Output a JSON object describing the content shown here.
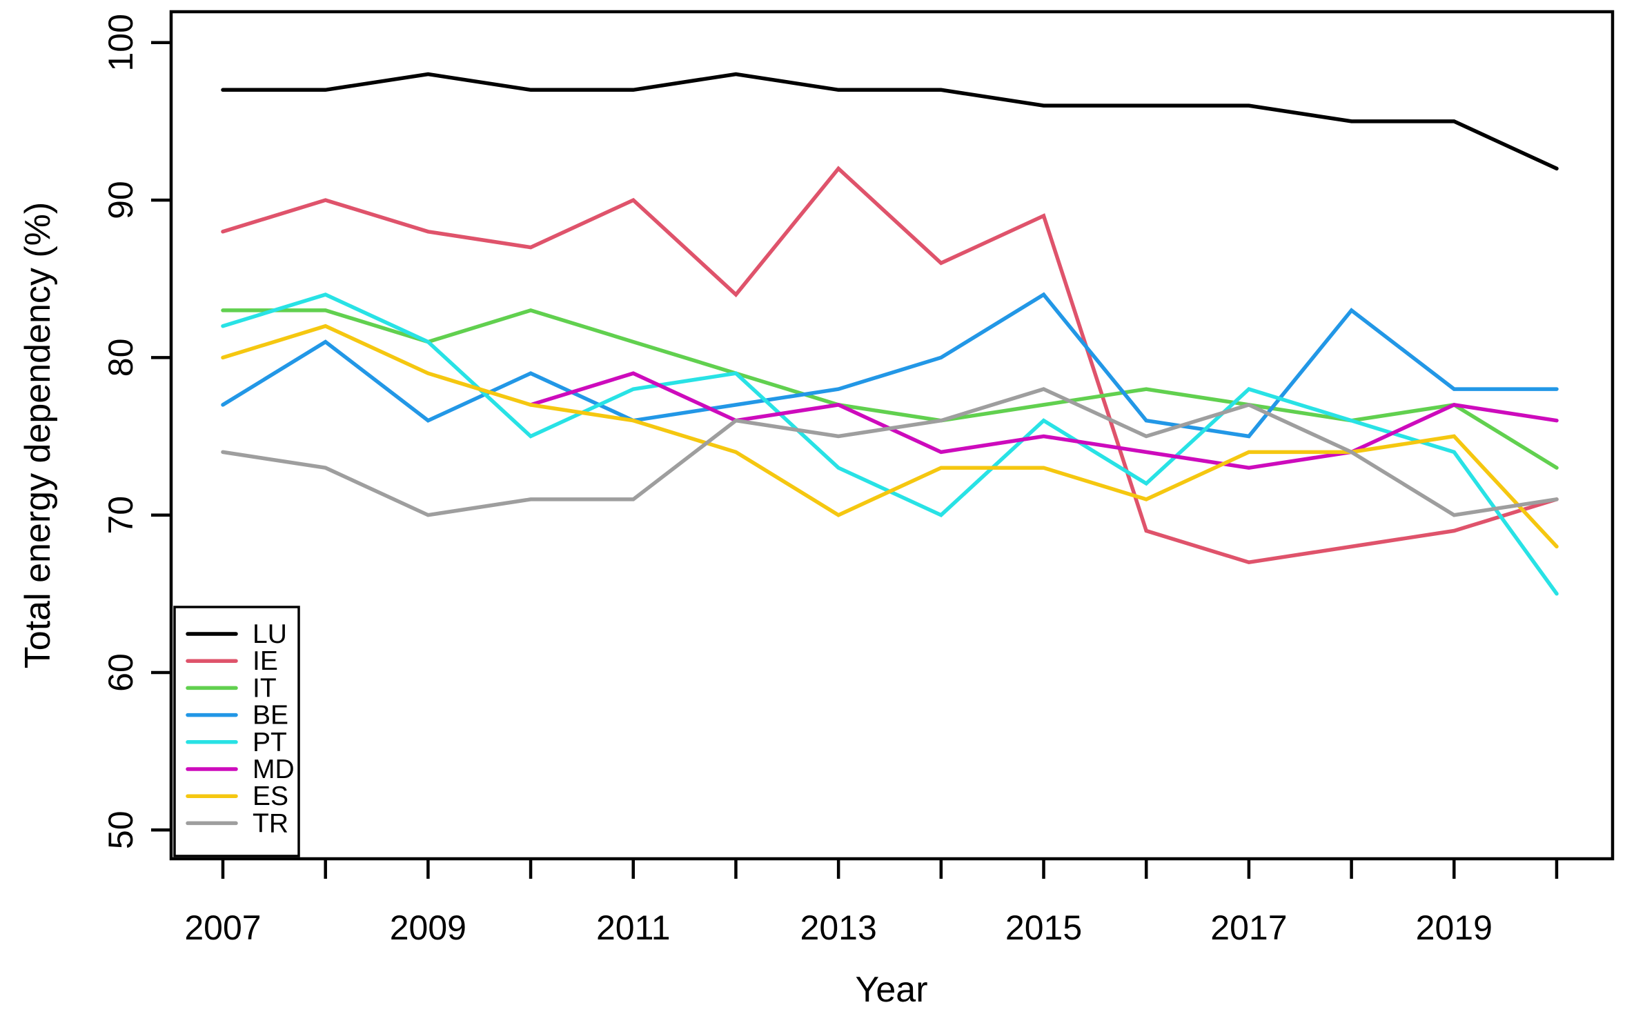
{
  "chart_data": {
    "type": "line",
    "title": "",
    "xlabel": "Year",
    "ylabel": "Total energy dependency (%)",
    "x": [
      2007,
      2008,
      2009,
      2010,
      2011,
      2012,
      2013,
      2014,
      2015,
      2016,
      2017,
      2018,
      2019,
      2020
    ],
    "x_labeled_years": [
      2007,
      2009,
      2011,
      2013,
      2015,
      2017,
      2019
    ],
    "y_ticks": [
      50,
      60,
      70,
      80,
      90,
      100
    ],
    "ylim": [
      48,
      102
    ],
    "xlim": [
      2006.5,
      2020.6
    ],
    "grid": false,
    "legend_position": "bottom-left",
    "axis_color": "#000000",
    "background_color": "#ffffff",
    "series": [
      {
        "name": "LU",
        "color": "#000000",
        "values": [
          97,
          97,
          98,
          97,
          97,
          98,
          97,
          97,
          96,
          96,
          96,
          95,
          95,
          92
        ]
      },
      {
        "name": "IE",
        "color": "#DF536B",
        "values": [
          88,
          90,
          88,
          87,
          90,
          84,
          92,
          86,
          89,
          69,
          67,
          68,
          69,
          71
        ]
      },
      {
        "name": "IT",
        "color": "#61D04F",
        "values": [
          83,
          83,
          81,
          83,
          81,
          79,
          77,
          76,
          77,
          78,
          77,
          76,
          77,
          73
        ]
      },
      {
        "name": "BE",
        "color": "#2297E6",
        "values": [
          77,
          81,
          76,
          79,
          76,
          77,
          78,
          80,
          84,
          76,
          75,
          83,
          78,
          78
        ]
      },
      {
        "name": "PT",
        "color": "#28E2E5",
        "values": [
          82,
          84,
          81,
          75,
          78,
          79,
          73,
          70,
          76,
          72,
          78,
          76,
          74,
          65
        ]
      },
      {
        "name": "MD",
        "color": "#CD0BBC",
        "values": [
          null,
          null,
          null,
          77,
          79,
          76,
          77,
          74,
          75,
          74,
          73,
          74,
          77,
          76
        ]
      },
      {
        "name": "ES",
        "color": "#F5C710",
        "values": [
          80,
          82,
          79,
          77,
          76,
          74,
          70,
          73,
          73,
          71,
          74,
          74,
          75,
          68
        ]
      },
      {
        "name": "TR",
        "color": "#9E9E9E",
        "values": [
          74,
          73,
          70,
          71,
          71,
          76,
          75,
          76,
          78,
          75,
          77,
          74,
          70,
          71
        ]
      }
    ]
  }
}
